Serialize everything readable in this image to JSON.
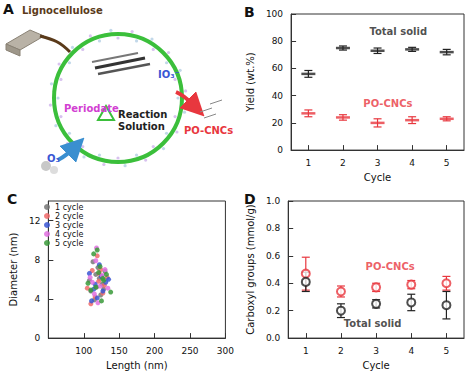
{
  "diagram": {
    "panel": "A",
    "lignocellulose": "Lignocellulose",
    "periodate": "Periodate",
    "iodate": "IO₃⁻",
    "reaction": [
      "Reaction",
      "Solution"
    ],
    "ozone": "O₃",
    "product": "PO-CNCs"
  },
  "chart_data": [
    {
      "type": "scatter",
      "title": "B",
      "x_label": "Cycle",
      "y_label": "Yield (wt.%)",
      "x": [
        1,
        2,
        3,
        4,
        5
      ],
      "xlim": [
        0.5,
        5.5
      ],
      "xticks": [
        1,
        2,
        3,
        4,
        5
      ],
      "ylim": [
        0,
        100
      ],
      "yticks": [
        0,
        20,
        40,
        60,
        80,
        100
      ],
      "grid": false,
      "series": [
        {
          "color": "#222222",
          "marker": "dash",
          "values": [
            56,
            75,
            73,
            74,
            72
          ],
          "errors": [
            2.5,
            1.5,
            2,
            1.5,
            2
          ]
        },
        {
          "color": "#e8373e",
          "marker": "dash",
          "values": [
            27,
            24,
            20,
            22,
            23
          ],
          "errors": [
            2.5,
            2,
            3,
            2.5,
            1.5
          ]
        }
      ],
      "annotations": [
        {
          "text": "Total solid",
          "x": 3.6,
          "y": 87,
          "color": "#222222"
        },
        {
          "text": "PO-CNCs",
          "x": 3.3,
          "y": 34,
          "color": "#e8373e"
        }
      ]
    },
    {
      "type": "scatter",
      "title": "C",
      "x_label": "Length (nm)",
      "y_label": "Diameter (nm)",
      "xlim": [
        50,
        300
      ],
      "xticks": [
        100,
        150,
        200,
        250,
        300
      ],
      "ylim": [
        0,
        14
      ],
      "yticks": [
        0,
        4,
        8,
        12
      ],
      "grid": false,
      "legend": "upper left",
      "series": [
        {
          "name": "1 cycle",
          "color": "#777777",
          "marker": "circle",
          "x": [
            118,
            122,
            110,
            126,
            115,
            130,
            120,
            108,
            124,
            117,
            128,
            113
          ],
          "values": [
            5.2,
            6.1,
            4.8,
            5.5,
            3.9,
            6.8,
            7.2,
            5.9,
            4.4,
            6.5,
            5.0,
            7.8
          ]
        },
        {
          "name": "2 cycle",
          "color": "#f06a6a",
          "marker": "circle",
          "x": [
            121,
            112,
            127,
            119,
            105,
            133,
            116,
            124,
            110,
            129,
            122
          ],
          "values": [
            5.8,
            6.9,
            4.6,
            8.4,
            5.1,
            6.2,
            4.2,
            7.0,
            3.5,
            5.4,
            6.6
          ]
        },
        {
          "name": "3 cycle",
          "color": "#3a56d4",
          "marker": "circle",
          "x": [
            114,
            125,
            119,
            131,
            108,
            122,
            116,
            127,
            111,
            135
          ],
          "values": [
            5.0,
            6.3,
            4.1,
            5.7,
            6.6,
            7.5,
            5.5,
            4.8,
            3.8,
            6.0
          ]
        },
        {
          "name": "4 cycle",
          "color": "#e070e0",
          "marker": "circle",
          "x": [
            118,
            109,
            123,
            130,
            115,
            126,
            112,
            120,
            134,
            117
          ],
          "values": [
            9.2,
            6.2,
            5.3,
            7.0,
            4.5,
            6.4,
            5.7,
            3.6,
            5.1,
            7.9
          ]
        },
        {
          "name": "5 cycle",
          "color": "#3a9a3a",
          "marker": "circle",
          "x": [
            121,
            114,
            128,
            110,
            125,
            132,
            117,
            123,
            106,
            138,
            119,
            127
          ],
          "values": [
            6.7,
            8.6,
            5.9,
            4.9,
            3.8,
            6.5,
            5.2,
            7.3,
            5.6,
            4.7,
            9.0,
            6.1
          ]
        }
      ]
    },
    {
      "type": "scatter",
      "title": "D",
      "x_label": "Cycle",
      "y_label": "Carboxyl groups (mmol/g)",
      "x": [
        1,
        2,
        3,
        4,
        5
      ],
      "xlim": [
        0.5,
        5.5
      ],
      "xticks": [
        1,
        2,
        3,
        4,
        5
      ],
      "ylim": [
        0,
        1
      ],
      "yticks": [
        {
          "value": 0,
          "label": "0.0"
        },
        0.2,
        0.4,
        0.6,
        0.8,
        {
          "value": 1,
          "label": "1.0"
        }
      ],
      "grid": false,
      "series": [
        {
          "color": "#e8373e",
          "marker": "open_circle",
          "values": [
            0.47,
            0.34,
            0.37,
            0.39,
            0.4
          ],
          "errors": [
            0.12,
            0.04,
            0.03,
            0.03,
            0.05
          ]
        },
        {
          "color": "#222222",
          "marker": "open_circle",
          "values": [
            0.41,
            0.2,
            0.25,
            0.26,
            0.24
          ],
          "errors": [
            0.07,
            0.05,
            0.03,
            0.06,
            0.1
          ]
        }
      ],
      "annotations": [
        {
          "text": "PO-CNCs",
          "x": 3.4,
          "y": 0.52,
          "color": "#e8373e"
        },
        {
          "text": "Total solid",
          "x": 2.9,
          "y": 0.11,
          "color": "#222222"
        }
      ]
    }
  ]
}
